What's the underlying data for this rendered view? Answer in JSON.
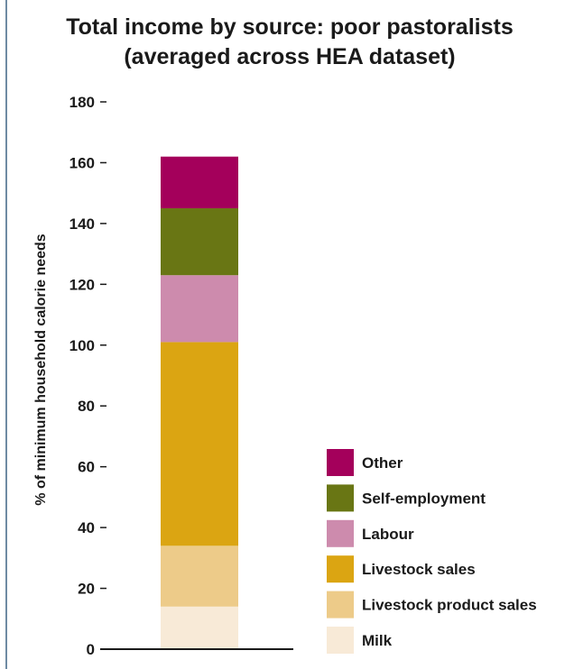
{
  "chart_data": {
    "type": "bar",
    "stacked": true,
    "title": "Total income by source: poor pastoralists (averaged across HEA dataset)",
    "title_lines": [
      "Total income by source: poor pastoralists",
      "(averaged across HEA dataset)"
    ],
    "xlabel": "",
    "ylabel": "% of minimum household calorie needs",
    "ylim": [
      0,
      180
    ],
    "yticks": [
      0,
      20,
      40,
      60,
      80,
      100,
      120,
      140,
      160,
      180
    ],
    "grid": false,
    "legend_position": "bottom-right",
    "categories": [
      ""
    ],
    "series": [
      {
        "name": "Milk",
        "values": [
          14
        ],
        "color": "#f8ead7"
      },
      {
        "name": "Livestock product sales",
        "values": [
          20
        ],
        "color": "#edcb89"
      },
      {
        "name": "Livestock sales",
        "values": [
          67
        ],
        "color": "#dba512"
      },
      {
        "name": "Labour",
        "values": [
          22
        ],
        "color": "#cd8bad"
      },
      {
        "name": "Self-employment",
        "values": [
          22
        ],
        "color": "#697614"
      },
      {
        "name": "Other",
        "values": [
          17
        ],
        "color": "#a4005b"
      }
    ]
  }
}
